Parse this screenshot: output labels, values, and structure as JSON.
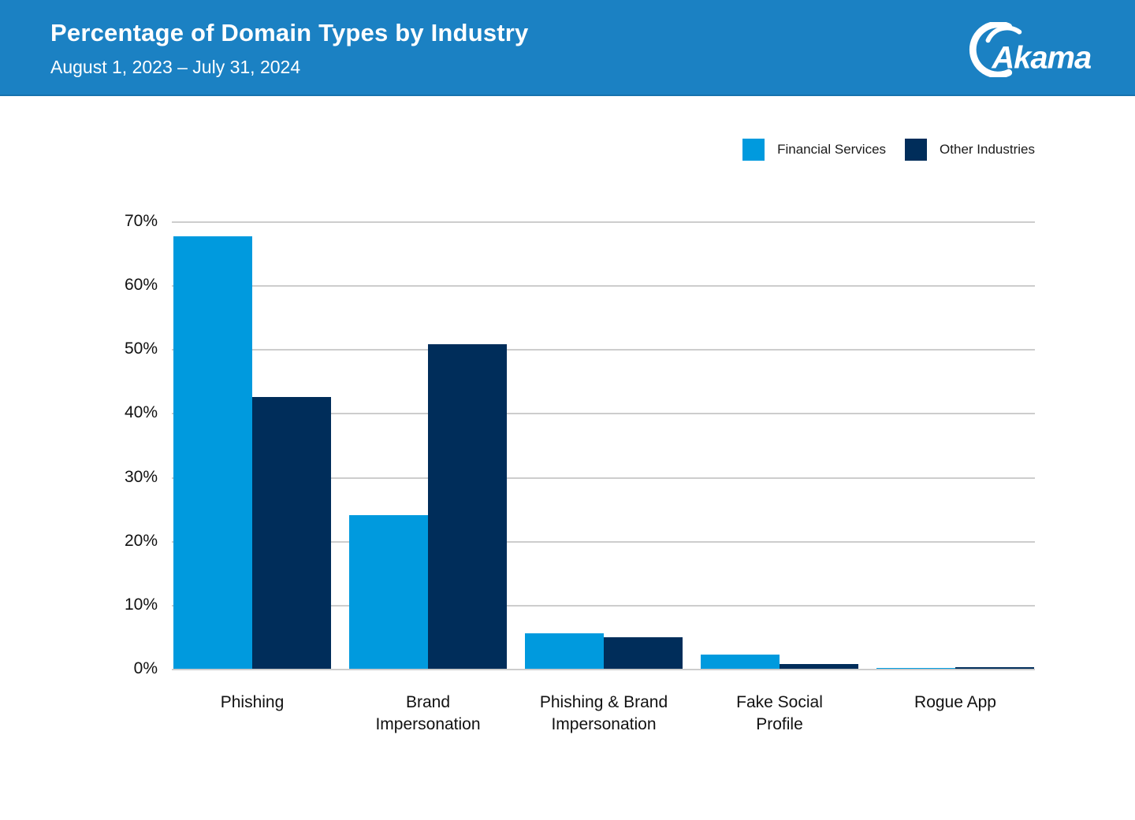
{
  "header": {
    "title": "Percentage of Domain Types by Industry",
    "subtitle": "August 1, 2023 – July 31, 2024",
    "logo_text": "Akamai"
  },
  "legend": {
    "items": [
      {
        "label": "Financial Services",
        "color": "#009ade"
      },
      {
        "label": "Other Industries",
        "color": "#002d5a"
      }
    ]
  },
  "colors": {
    "header_bg": "#1b81c3",
    "financial_services": "#009ade",
    "other_industries": "#002d5a",
    "gridline": "#cdcdcd",
    "text": "#111111"
  },
  "chart_data": {
    "type": "bar",
    "title": "Percentage of Domain Types by Industry",
    "subtitle": "August 1, 2023 – July 31, 2024",
    "categories": [
      "Phishing",
      "Brand Impersonation",
      "Phishing & Brand Impersonation",
      "Fake Social Profile",
      "Rogue App"
    ],
    "category_label_lines": [
      [
        "Phishing"
      ],
      [
        "Brand",
        "Impersonation"
      ],
      [
        "Phishing & Brand",
        "Impersonation"
      ],
      [
        "Fake Social",
        "Profile"
      ],
      [
        "Rogue App"
      ]
    ],
    "series": [
      {
        "name": "Financial Services",
        "color": "#009ade",
        "values": [
          67.6,
          24.0,
          5.6,
          2.2,
          0.1
        ]
      },
      {
        "name": "Other Industries",
        "color": "#002d5a",
        "values": [
          42.5,
          50.8,
          4.9,
          0.7,
          0.3
        ]
      }
    ],
    "xlabel": "",
    "ylabel": "",
    "ylim": [
      0,
      70
    ],
    "y_tick_values": [
      0,
      10,
      20,
      30,
      40,
      50,
      60,
      70
    ],
    "y_tick_labels": [
      "0%",
      "10%",
      "20%",
      "30%",
      "40%",
      "50%",
      "60%",
      "70%"
    ],
    "grid": true,
    "legend_position": "top-right"
  }
}
